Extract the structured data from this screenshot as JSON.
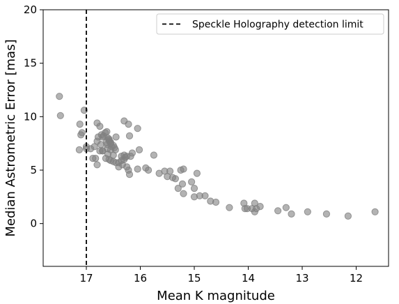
{
  "chart_data": {
    "type": "scatter",
    "title": "",
    "xlabel": "Mean K magnitude",
    "ylabel": "Median Astrometric Error [mas]",
    "xlim": [
      17.8,
      11.4
    ],
    "ylim": [
      -4,
      20
    ],
    "x_inverted": true,
    "xticks": [
      17,
      16,
      15,
      14,
      13,
      12
    ],
    "yticks": [
      0,
      5,
      10,
      15,
      20
    ],
    "grid": false,
    "legend_position": "top-right",
    "point_color": "#808080",
    "series": [
      {
        "x": [
          17.5,
          17.48,
          17.04,
          17.12,
          17.08,
          17.1,
          17.0,
          16.88,
          16.8,
          16.75,
          16.7,
          16.62,
          16.58,
          16.55,
          16.5,
          16.45,
          16.4,
          16.3,
          16.3,
          16.22,
          16.2,
          16.05,
          16.8,
          16.75,
          16.72,
          16.68,
          16.65,
          16.62,
          16.6,
          16.58,
          16.57,
          16.55,
          16.53,
          16.5,
          16.48,
          16.46,
          16.3,
          16.28,
          16.25,
          16.22,
          16.78,
          16.73,
          16.7,
          16.64,
          16.61,
          17.13,
          17.0,
          16.92,
          16.83,
          16.7,
          16.63,
          16.58,
          16.55,
          16.5,
          16.4,
          16.35,
          16.33,
          16.25,
          16.2,
          16.15,
          16.05,
          16.02,
          16.85,
          16.8,
          16.6,
          16.55,
          16.45,
          16.35,
          16.18,
          15.9,
          15.85,
          15.75,
          15.65,
          15.55,
          15.5,
          15.45,
          15.4,
          15.35,
          15.3,
          15.25,
          15.22,
          15.2,
          15.2,
          15.05,
          15.0,
          15.0,
          14.95,
          14.9,
          14.8,
          14.7,
          14.6,
          14.35,
          14.08,
          14.02,
          14.06,
          13.93,
          13.88,
          13.88,
          13.85,
          13.78,
          13.45,
          13.3,
          13.2,
          12.9,
          12.55,
          12.15,
          11.65
        ],
        "y": [
          11.9,
          10.1,
          10.6,
          9.3,
          8.5,
          8.3,
          7.0,
          6.1,
          5.5,
          6.8,
          8.1,
          7.4,
          6.0,
          5.9,
          5.8,
          5.7,
          5.3,
          6.4,
          9.6,
          9.3,
          8.2,
          8.9,
          9.4,
          9.1,
          8.3,
          8.2,
          8.5,
          8.6,
          8.0,
          7.8,
          7.7,
          7.6,
          7.2,
          7.3,
          7.1,
          6.9,
          6.0,
          6.2,
          5.3,
          5.0,
          8.1,
          7.4,
          6.8,
          6.1,
          7.0,
          6.9,
          7.2,
          7.0,
          6.1,
          6.8,
          7.6,
          7.9,
          7.5,
          6.4,
          5.7,
          6.3,
          5.5,
          6.3,
          4.6,
          6.6,
          5.1,
          6.9,
          7.2,
          7.7,
          6.5,
          6.9,
          8.1,
          5.9,
          6.3,
          5.2,
          5.0,
          6.4,
          4.7,
          4.9,
          4.4,
          4.9,
          4.3,
          4.2,
          3.3,
          5.0,
          3.7,
          5.1,
          2.8,
          3.9,
          3.3,
          2.5,
          4.7,
          2.6,
          2.6,
          2.1,
          2.0,
          1.5,
          1.9,
          1.4,
          1.4,
          1.4,
          1.1,
          1.9,
          1.4,
          1.6,
          1.2,
          1.5,
          0.9,
          1.1,
          0.9,
          0.7,
          1.1
        ]
      }
    ],
    "reference_line": {
      "orientation": "vertical",
      "x": 17.0,
      "style": "dashed",
      "color": "#000000",
      "label": "Speckle Holography detection limit"
    }
  }
}
